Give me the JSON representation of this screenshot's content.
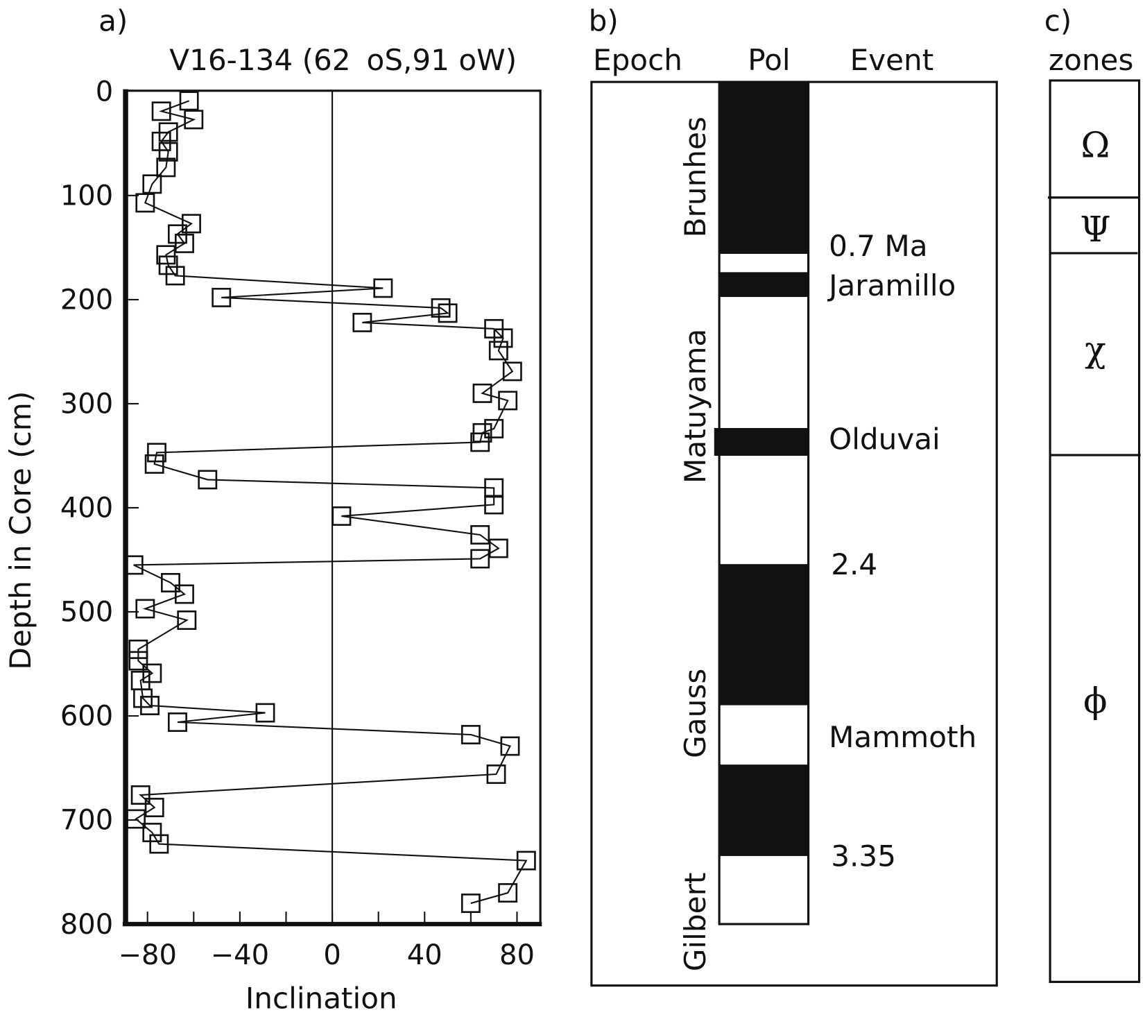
{
  "panel_a": {
    "label": "a)",
    "core_title": "V16-134 (62",
    "core_title_2": "oS,91 oW)"
  },
  "panel_b": {
    "label": "b)",
    "headers": {
      "epoch": "Epoch",
      "pol": "Pol",
      "event": "Event"
    },
    "epochs": [
      "Brunhes",
      "Matuyama",
      "Gauss",
      "Gilbert"
    ],
    "events": [
      "0.7 Ma",
      "Jaramillo",
      "Olduvai",
      "2.4",
      "Mammoth",
      "3.35"
    ],
    "polarity_sequence": [
      "normal",
      "reversed",
      "normal",
      "reversed",
      "normal",
      "reversed",
      "normal",
      "reversed",
      "normal",
      "reversed"
    ],
    "colors": {
      "normal": "#111111",
      "reversed": "#ffffff"
    }
  },
  "panel_c": {
    "label": "c)",
    "header": "zones",
    "zones": [
      "Ω",
      "Ψ",
      "χ",
      "ϕ"
    ]
  },
  "chart_data": {
    "type": "line",
    "xlabel": "Inclination",
    "ylabel": "Depth in Core (cm)",
    "xlim": [
      -90,
      90
    ],
    "ylim": [
      800,
      0
    ],
    "y_inverted": true,
    "grid": false,
    "marker": "open-square",
    "xticks": [
      "−80",
      "−40",
      "0",
      "40",
      "80"
    ],
    "xtick_values": [
      -80,
      -40,
      0,
      40,
      80
    ],
    "yticks": [
      "0",
      "100",
      "200",
      "300",
      "400",
      "500",
      "600",
      "700",
      "800"
    ],
    "ytick_values": [
      0,
      100,
      200,
      300,
      400,
      500,
      600,
      700,
      800
    ],
    "zero_line": 0,
    "points": [
      [
        -62,
        9
      ],
      [
        -74,
        19
      ],
      [
        -60,
        27
      ],
      [
        -71,
        39
      ],
      [
        -74,
        48
      ],
      [
        -71,
        58
      ],
      [
        -72,
        73
      ],
      [
        -78,
        89
      ],
      [
        -81,
        107
      ],
      [
        -61,
        127
      ],
      [
        -67,
        137
      ],
      [
        -64,
        146
      ],
      [
        -72,
        157
      ],
      [
        -71,
        167
      ],
      [
        -68,
        177
      ],
      [
        22,
        189
      ],
      [
        -48,
        198
      ],
      [
        47,
        208
      ],
      [
        50,
        213
      ],
      [
        13,
        222
      ],
      [
        70,
        228
      ],
      [
        74,
        237
      ],
      [
        72,
        249
      ],
      [
        78,
        269
      ],
      [
        65,
        290
      ],
      [
        76,
        297
      ],
      [
        70,
        324
      ],
      [
        65,
        328
      ],
      [
        64,
        337
      ],
      [
        -76,
        347
      ],
      [
        -77,
        358
      ],
      [
        -54,
        373
      ],
      [
        70,
        381
      ],
      [
        70,
        397
      ],
      [
        4,
        408
      ],
      [
        64,
        426
      ],
      [
        72,
        439
      ],
      [
        64,
        449
      ],
      [
        -86,
        455
      ],
      [
        -70,
        472
      ],
      [
        -64,
        483
      ],
      [
        -81,
        497
      ],
      [
        -63,
        508
      ],
      [
        -84,
        536
      ],
      [
        -84,
        547
      ],
      [
        -78,
        559
      ],
      [
        -83,
        566
      ],
      [
        -82,
        583
      ],
      [
        -79,
        590
      ],
      [
        -29,
        597
      ],
      [
        -67,
        606
      ],
      [
        60,
        618
      ],
      [
        77,
        629
      ],
      [
        71,
        656
      ],
      [
        -83,
        676
      ],
      [
        -77,
        688
      ],
      [
        -85,
        699
      ],
      [
        -78,
        712
      ],
      [
        -75,
        723
      ],
      [
        84,
        739
      ],
      [
        76,
        770
      ],
      [
        60,
        780
      ]
    ]
  }
}
